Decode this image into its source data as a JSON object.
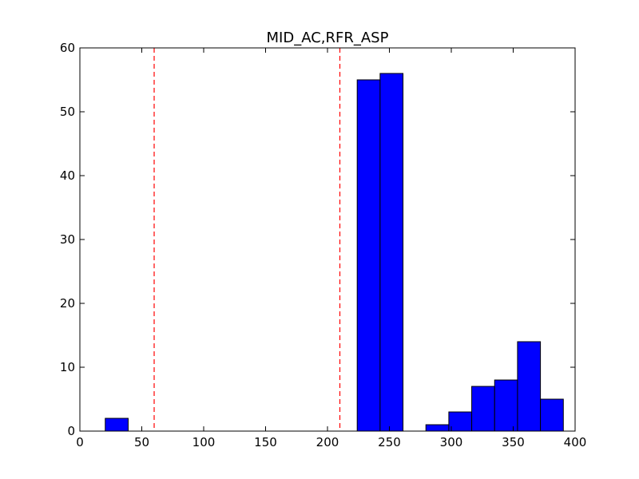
{
  "chart_data": {
    "type": "bar",
    "title": "MID_AC,RFR_ASP",
    "xlabel": "",
    "ylabel": "",
    "xlim": [
      0,
      400
    ],
    "ylim": [
      0,
      60
    ],
    "xticks": [
      0,
      50,
      100,
      150,
      200,
      250,
      300,
      350,
      400
    ],
    "yticks": [
      0,
      10,
      20,
      30,
      40,
      50,
      60
    ],
    "bar_color": "#0000ff",
    "bar_edge_color": "#000000",
    "bins": [
      {
        "x0": 20.5,
        "x1": 39.0,
        "count": 2
      },
      {
        "x0": 224.0,
        "x1": 242.5,
        "count": 55
      },
      {
        "x0": 242.5,
        "x1": 261.0,
        "count": 56
      },
      {
        "x0": 279.5,
        "x1": 298.0,
        "count": 1
      },
      {
        "x0": 298.0,
        "x1": 316.5,
        "count": 3
      },
      {
        "x0": 316.5,
        "x1": 335.0,
        "count": 7
      },
      {
        "x0": 335.0,
        "x1": 353.5,
        "count": 8
      },
      {
        "x0": 353.5,
        "x1": 372.0,
        "count": 14
      },
      {
        "x0": 372.0,
        "x1": 390.5,
        "count": 5
      }
    ],
    "reference_lines": [
      {
        "x": 60,
        "color": "#ff0000",
        "style": "dashed"
      },
      {
        "x": 210,
        "color": "#ff0000",
        "style": "dashed"
      }
    ],
    "grid": false,
    "legend": "none"
  }
}
